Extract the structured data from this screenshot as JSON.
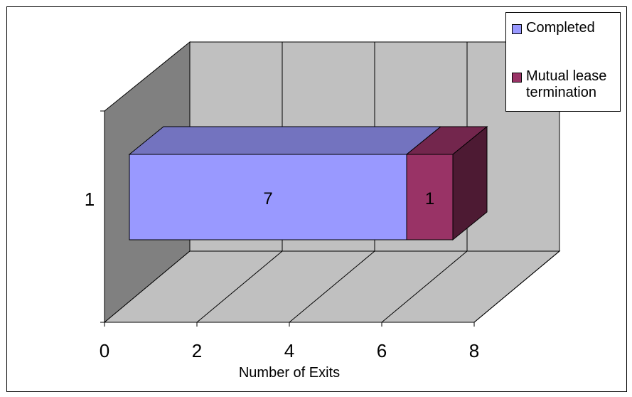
{
  "chart_data": {
    "type": "bar",
    "orientation": "horizontal",
    "stacked": true,
    "three_d": true,
    "categories": [
      "1"
    ],
    "series": [
      {
        "name": "Completed",
        "values": [
          7
        ],
        "color": "#9999ff",
        "label": "7"
      },
      {
        "name": "Mutual lease termination",
        "values": [
          1
        ],
        "color": "#993366",
        "label": "1"
      }
    ],
    "xlabel": "Number of Exits",
    "ylabel": "",
    "title": "",
    "xlim": [
      0,
      8
    ],
    "x_ticks": [
      "0",
      "2",
      "4",
      "6",
      "8"
    ],
    "grid": true,
    "legend_position": "top-right",
    "wall_color": "#c0c0c0",
    "side_wall_color": "#808080"
  }
}
